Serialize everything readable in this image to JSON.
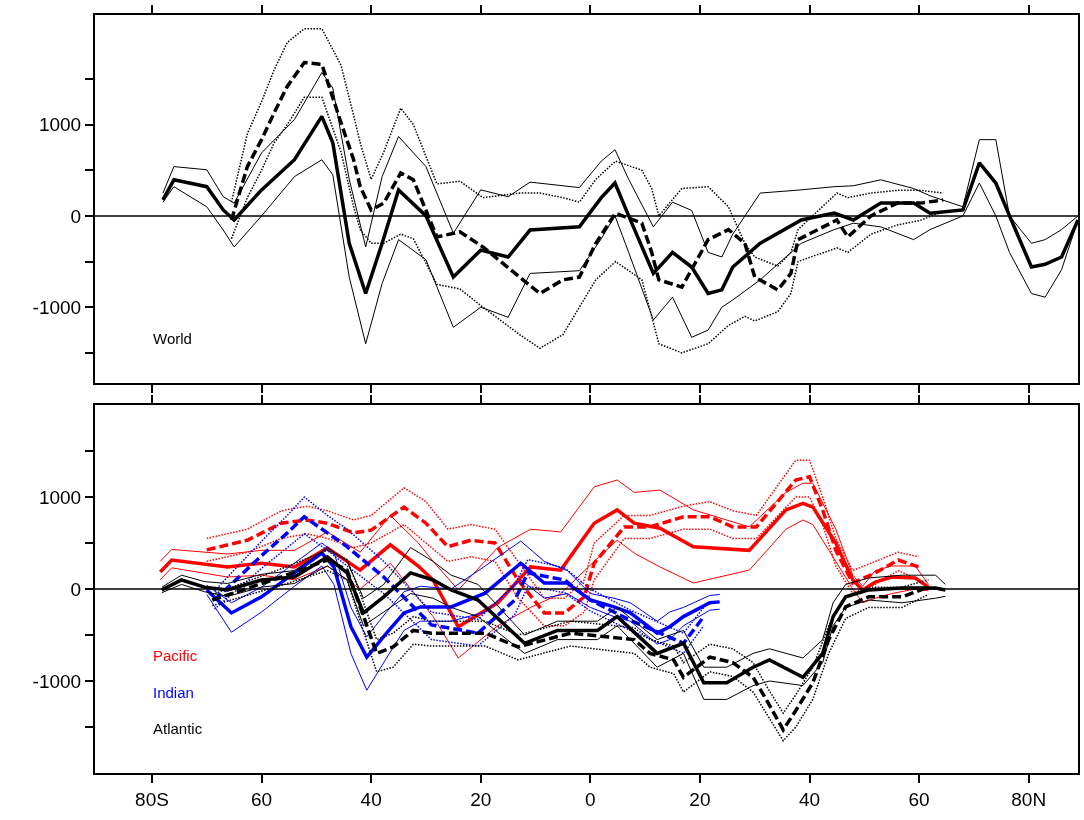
{
  "chart_data": [
    {
      "type": "line",
      "xlim": [
        -90.4,
        89
      ],
      "ylim": [
        -1830,
        2200
      ],
      "tick_labels": "y",
      "xticks": [
        {
          "value": -80,
          "label": null
        },
        {
          "value": -60,
          "label": null
        },
        {
          "value": -40,
          "label": null
        },
        {
          "value": -20,
          "label": null
        },
        {
          "value": 0,
          "label": null
        },
        {
          "value": 20,
          "label": null
        },
        {
          "value": 40,
          "label": null
        },
        {
          "value": 60,
          "label": null
        },
        {
          "value": 80,
          "label": null
        }
      ],
      "yticks": [
        {
          "value": 1500,
          "label": null
        },
        1000,
        {
          "value": 500,
          "label": null
        },
        0,
        {
          "value": -500,
          "label": null
        },
        -1000,
        {
          "value": -1500,
          "label": null
        }
      ],
      "ref_lines": [
        {
          "axis": "y",
          "value": 0,
          "color": "#000000"
        }
      ],
      "series": [
        {
          "name": "World",
          "color": "#000000",
          "line_style": "solid",
          "x": [
            -78,
            -76,
            -70,
            -67,
            -65,
            -60,
            -54,
            -49,
            -47,
            -44,
            -41,
            -38,
            -35,
            -30,
            -25,
            -20,
            -15,
            -11,
            -2,
            2,
            4.5,
            7,
            11.5,
            15,
            18.5,
            21.5,
            24,
            26,
            31,
            38.5,
            44.5,
            48,
            53,
            59,
            62,
            68,
            71,
            74,
            76.5,
            80.5,
            83,
            86,
            89
          ],
          "values": [
            175,
            395,
            320,
            65,
            -45,
            285,
            615,
            1090,
            800,
            -300,
            -850,
            -300,
            285,
            0,
            -670,
            -375,
            -450,
            -155,
            -120,
            200,
            360,
            0,
            -630,
            -400,
            -560,
            -850,
            -810,
            -560,
            -300,
            -45,
            30,
            -45,
            140,
            140,
            30,
            65,
            580,
            360,
            0,
            -560,
            -530,
            -450,
            -45
          ]
        },
        {
          "color": "#000000",
          "line_style": "solid",
          "x": [
            -78,
            -76,
            -70,
            -67,
            -65,
            -60,
            -54,
            -49,
            -47,
            -44,
            -41,
            -38,
            -35,
            -30,
            -25,
            -20,
            -15,
            -11,
            -2,
            2,
            4.5,
            7,
            11.5,
            15,
            18.5,
            21.5,
            24,
            26,
            31,
            38.5,
            44.5,
            48,
            53,
            59,
            62,
            68,
            71,
            74,
            76.5,
            80.5,
            83,
            86,
            89
          ],
          "values": [
            250,
            540,
            505,
            210,
            140,
            690,
            1055,
            1570,
            1400,
            400,
            -340,
            430,
            870,
            540,
            -190,
            285,
            210,
            370,
            310,
            600,
            725,
            400,
            -120,
            150,
            60,
            -400,
            -450,
            -200,
            250,
            285,
            320,
            330,
            395,
            300,
            220,
            100,
            835,
            835,
            0,
            -300,
            -260,
            -150,
            0
          ]
        },
        {
          "color": "#000000",
          "line_style": "solid",
          "x": [
            -78,
            -76,
            -70,
            -67,
            -65,
            -60,
            -54,
            -49,
            -47,
            -44,
            -41,
            -38,
            -35,
            -30,
            -25,
            -20,
            -15,
            -11,
            -2,
            2,
            4.5,
            7,
            11.5,
            15,
            18.5,
            21.5,
            24,
            26,
            31,
            38.5,
            44.5,
            48,
            53,
            59,
            62,
            68,
            71,
            74,
            76.5,
            80.5,
            83,
            86,
            89
          ],
          "values": [
            150,
            320,
            100,
            -155,
            -340,
            0,
            430,
            615,
            450,
            -670,
            -1400,
            -740,
            -260,
            -480,
            -1220,
            -1000,
            -1110,
            -630,
            -600,
            -250,
            0,
            -400,
            -1140,
            -890,
            -1330,
            -1250,
            -1000,
            -920,
            -700,
            -300,
            -150,
            -80,
            -120,
            -260,
            -150,
            0,
            360,
            0,
            -400,
            -850,
            -890,
            -590,
            -45
          ]
        },
        {
          "color": "#000000",
          "line_style": "dashed",
          "x": [
            -65.5,
            -62.6,
            -60,
            -57.7,
            -55.3,
            -52.2,
            -49,
            -45.5,
            -43.2,
            -42,
            -40,
            -37.7,
            -34.6,
            -32.3,
            -28,
            -23.8,
            -19.6,
            -12.9,
            -9.2,
            -5,
            -2,
            1,
            4.6,
            9.4,
            11.2,
            12.5,
            16.7,
            21.5,
            25.2,
            28.2,
            30,
            34.2,
            36.6,
            37.9,
            45,
            47,
            51.2,
            56,
            60.2,
            64.4
          ],
          "values": [
            -45,
            540,
            835,
            1130,
            1420,
            1680,
            1660,
            1020,
            615,
            320,
            65,
            140,
            470,
            395,
            -230,
            -175,
            -340,
            -670,
            -850,
            -700,
            -670,
            -300,
            30,
            -80,
            -400,
            -700,
            -780,
            -260,
            -150,
            -300,
            -670,
            -810,
            -630,
            -260,
            -45,
            -230,
            0,
            140,
            140,
            175
          ]
        },
        {
          "color": "#000000",
          "line_style": "dotted",
          "x": [
            -65.5,
            -62.6,
            -60,
            -57.7,
            -55.3,
            -52.2,
            -49,
            -45.5,
            -43.2,
            -42,
            -40,
            -37.7,
            -34.6,
            -32.3,
            -28,
            -23.8,
            -19.6,
            -12.9,
            -9.2,
            -5,
            -2,
            1,
            4.6,
            9.4,
            11.2,
            12.5,
            16.7,
            21.5,
            25.2,
            28.2,
            30,
            34.2,
            36.6,
            37.9,
            45,
            47,
            51.2,
            56,
            60.2,
            64.4
          ],
          "values": [
            150,
            900,
            1250,
            1600,
            1900,
            2050,
            2050,
            1650,
            1100,
            800,
            400,
            700,
            1180,
            1000,
            350,
            380,
            200,
            250,
            250,
            200,
            150,
            400,
            600,
            500,
            300,
            0,
            300,
            320,
            100,
            -300,
            -450,
            -550,
            -400,
            -150,
            250,
            200,
            250,
            280,
            280,
            250
          ]
        },
        {
          "color": "#000000",
          "line_style": "dotted",
          "x": [
            -65.5,
            -62.6,
            -60,
            -57.7,
            -55.3,
            -52.2,
            -49,
            -45.5,
            -43.2,
            -42,
            -40,
            -37.7,
            -34.6,
            -32.3,
            -28,
            -23.8,
            -19.6,
            -12.9,
            -9.2,
            -5,
            -2,
            1,
            4.6,
            9.4,
            11.2,
            12.5,
            16.7,
            21.5,
            25.2,
            28.2,
            30,
            34.2,
            36.6,
            37.9,
            45,
            47,
            51.2,
            56,
            60.2,
            64.4
          ],
          "values": [
            -250,
            200,
            500,
            800,
            1000,
            1300,
            1300,
            700,
            100,
            -150,
            -300,
            -300,
            -200,
            -250,
            -750,
            -800,
            -1000,
            -1300,
            -1450,
            -1300,
            -1000,
            -700,
            -500,
            -700,
            -1100,
            -1400,
            -1500,
            -1400,
            -1200,
            -1100,
            -1150,
            -1050,
            -850,
            -500,
            -350,
            -400,
            -200,
            -100,
            -50,
            50
          ]
        }
      ]
    },
    {
      "type": "line",
      "xlim": [
        -90.4,
        89
      ],
      "ylim": [
        -2000,
        2000
      ],
      "xticks": [
        {
          "value": -80,
          "label": "80S"
        },
        {
          "value": -60,
          "label": "60"
        },
        {
          "value": -40,
          "label": "40"
        },
        {
          "value": -20,
          "label": "20"
        },
        0,
        {
          "value": 20,
          "label": "20"
        },
        {
          "value": 40,
          "label": "40"
        },
        {
          "value": 60,
          "label": "60"
        },
        {
          "value": 80,
          "label": "80N"
        }
      ],
      "yticks": [
        {
          "value": 1500,
          "label": null
        },
        1000,
        {
          "value": 500,
          "label": null
        },
        0,
        {
          "value": -500,
          "label": null
        },
        -1000,
        {
          "value": -1500,
          "label": null
        }
      ],
      "ref_lines": [
        {
          "axis": "y",
          "value": 0,
          "color": "#000000"
        }
      ],
      "series": [
        {
          "name": "Pacific",
          "color": "#ff0000",
          "line_style": "solid",
          "x": [
            -78.5,
            -76.4,
            -66.2,
            -60,
            -54,
            -48,
            -42,
            -36.5,
            -31.4,
            -28.7,
            -24.1,
            -16.9,
            -10.9,
            -5.4,
            0.7,
            4.9,
            8,
            12.7,
            18.8,
            29,
            35.7,
            38.8,
            40.6,
            44.8,
            47.9,
            49.7,
            52,
            55,
            59.3,
            61.7
          ],
          "values": [
            185,
            315,
            240,
            280,
            240,
            445,
            205,
            480,
            250,
            98,
            -410,
            -150,
            240,
            205,
            715,
            860,
            715,
            660,
            460,
            420,
            860,
            930,
            890,
            500,
            98,
            -10,
            75,
            130,
            120,
            20
          ]
        },
        {
          "color": "#ff0000",
          "line_style": "solid",
          "x": [
            -78.5,
            -76.4,
            -66.2,
            -60,
            -54,
            -48,
            -42,
            -36.5,
            -31.4,
            -28.7,
            -24.1,
            -16.9,
            -10.9,
            -5.4,
            0.7,
            4.9,
            8,
            12.7,
            18.8,
            29,
            35.7,
            38.8,
            40.6,
            44.8,
            47.9,
            49.7,
            52,
            55,
            59.3,
            61.7
          ],
          "values": [
            300,
            430,
            380,
            420,
            420,
            620,
            400,
            800,
            500,
            300,
            -10,
            450,
            650,
            620,
            1110,
            1185,
            1050,
            1075,
            860,
            675,
            1050,
            1150,
            1150,
            650,
            150,
            30,
            200,
            250,
            250,
            50
          ]
        },
        {
          "color": "#ff0000",
          "line_style": "solid",
          "x": [
            -78.5,
            -76.4,
            -66.2,
            -60,
            -54,
            -48,
            -42,
            -36.5,
            -31.4,
            -28.7,
            -24.1,
            -16.9,
            -10.9,
            -5.4,
            0.7,
            4.9,
            8,
            12.7,
            18.8,
            29,
            35.7,
            38.8,
            40.6,
            44.8,
            47.9,
            49.7,
            52,
            55,
            59.3,
            61.7
          ],
          "values": [
            100,
            230,
            130,
            150,
            100,
            250,
            0,
            280,
            -100,
            -300,
            -750,
            -400,
            -200,
            -50,
            300,
            530,
            390,
            240,
            65,
            205,
            650,
            750,
            700,
            300,
            0,
            -150,
            -100,
            -50,
            0,
            -20
          ]
        },
        {
          "color": "#ff0000",
          "line_style": "dashed",
          "x": [
            -70,
            -62.6,
            -56.4,
            -51.7,
            -48,
            -43.2,
            -40,
            -34,
            -30,
            -26,
            -21.8,
            -17.4,
            -13.2,
            -8.4,
            -4.7,
            -1.1,
            0.7,
            6.2,
            10.9,
            17,
            21.8,
            26,
            30.3,
            37.5,
            40,
            42.4,
            44.8,
            47.9,
            52,
            56.2,
            59.9
          ],
          "values": [
            425,
            530,
            715,
            750,
            715,
            610,
            640,
            890,
            715,
            460,
            530,
            500,
            98,
            -260,
            -260,
            -85,
            280,
            675,
            675,
            785,
            785,
            675,
            675,
            1185,
            1220,
            860,
            420,
            65,
            175,
            315,
            240
          ]
        },
        {
          "color": "#ff0000",
          "line_style": "dotted",
          "x": [
            -70,
            -62.6,
            -56.4,
            -51.7,
            -48,
            -43.2,
            -40,
            -34,
            -30,
            -26,
            -21.8,
            -17.4,
            -13.2,
            -8.4,
            -4.7,
            -1.1,
            0.7,
            6.2,
            10.9,
            17,
            21.8,
            26,
            30.3,
            37.5,
            40,
            42.4,
            44.8,
            47.9,
            52,
            56.2,
            59.9
          ],
          "values": [
            550,
            650,
            850,
            900,
            850,
            750,
            800,
            1100,
            950,
            650,
            700,
            650,
            300,
            -100,
            -100,
            100,
            500,
            800,
            800,
            900,
            950,
            850,
            800,
            1400,
            1400,
            1000,
            550,
            200,
            300,
            400,
            350
          ]
        },
        {
          "color": "#ff0000",
          "line_style": "dotted",
          "x": [
            -70,
            -62.6,
            -56.4,
            -51.7,
            -48,
            -43.2,
            -40,
            -34,
            -30,
            -26,
            -21.8,
            -17.4,
            -13.2,
            -8.4,
            -4.7,
            -1.1,
            0.7,
            6.2,
            10.9,
            17,
            21.8,
            26,
            30.3,
            37.5,
            40,
            42.4,
            44.8,
            47.9,
            52,
            56.2,
            59.9
          ],
          "values": [
            300,
            400,
            550,
            600,
            550,
            450,
            500,
            700,
            500,
            300,
            350,
            300,
            -100,
            -400,
            -400,
            -250,
            100,
            550,
            550,
            650,
            650,
            550,
            550,
            1000,
            1000,
            700,
            250,
            -50,
            50,
            200,
            100
          ]
        },
        {
          "name": "Indian",
          "color": "#0000ff",
          "line_style": "solid",
          "x": [
            -70,
            -65.5,
            -60,
            -54,
            -49,
            -46.8,
            -43.7,
            -40.8,
            -37.2,
            -34,
            -31,
            -25.4,
            -19.2,
            -12.7,
            -8.4,
            -4.2,
            0,
            4.3,
            7.3,
            12.2,
            14.5,
            17,
            21.8,
            23.6
          ],
          "values": [
            -10,
            -260,
            -85,
            175,
            390,
            240,
            -410,
            -740,
            -480,
            -260,
            -195,
            -195,
            -45,
            280,
            65,
            65,
            -120,
            -195,
            -260,
            -480,
            -410,
            -300,
            -150,
            -140
          ]
        },
        {
          "color": "#0000ff",
          "line_style": "solid",
          "x": [
            -70,
            -65.5,
            -60,
            -54,
            -49,
            -46.8,
            -43.7,
            -40.8,
            -37.2,
            -34,
            -31,
            -25.4,
            -19.2,
            -12.7,
            -8.4,
            -4.2,
            0,
            4.3,
            7.3,
            12.2,
            14.5,
            17,
            21.8,
            23.6
          ],
          "values": [
            40,
            -150,
            20,
            280,
            500,
            400,
            -200,
            -520,
            -250,
            -30,
            30,
            0,
            250,
            520,
            300,
            200,
            -50,
            -100,
            -150,
            -350,
            -250,
            -200,
            -70,
            -60
          ]
        },
        {
          "color": "#0000ff",
          "line_style": "solid",
          "x": [
            -70,
            -65.5,
            -60,
            -54,
            -49,
            -46.8,
            -43.7,
            -40.8,
            -37.2,
            -34,
            -31,
            -25.4,
            -19.2,
            -12.7,
            -8.4,
            -4.2,
            0,
            4.3,
            7.3,
            12.2,
            14.5,
            17,
            21.8,
            23.6
          ],
          "values": [
            -60,
            -470,
            -250,
            30,
            250,
            50,
            -700,
            -1100,
            -750,
            -450,
            -350,
            -350,
            -250,
            100,
            -100,
            -50,
            -200,
            -300,
            -350,
            -600,
            -550,
            -400,
            -230,
            -220
          ]
        },
        {
          "color": "#0000ff",
          "line_style": "dashed",
          "x": [
            -68.6,
            -59.5,
            -55.3,
            -52.2,
            -48,
            -44.4,
            -37.7,
            -29,
            -20.5,
            -13.8,
            -11.4,
            -4.7,
            0,
            7.3,
            17,
            20.7
          ],
          "values": [
            -120,
            390,
            610,
            785,
            610,
            460,
            130,
            -390,
            -480,
            -120,
            175,
            98,
            -120,
            -340,
            -590,
            -300
          ]
        },
        {
          "color": "#0000ff",
          "line_style": "dotted",
          "x": [
            -68.6,
            -59.5,
            -55.3,
            -52.2,
            -48,
            -44.4,
            -37.7,
            -29,
            -20.5,
            -13.8,
            -11.4,
            -4.7,
            0,
            7.3,
            17,
            20.7
          ],
          "values": [
            -20,
            550,
            800,
            1000,
            800,
            650,
            300,
            -250,
            -330,
            50,
            320,
            230,
            0,
            -230,
            -480,
            -200
          ]
        },
        {
          "color": "#0000ff",
          "line_style": "dotted",
          "x": [
            -68.6,
            -59.5,
            -55.3,
            -52.2,
            -48,
            -44.4,
            -37.7,
            -29,
            -20.5,
            -13.8,
            -11.4,
            -4.7,
            0,
            7.3,
            17,
            20.7
          ],
          "values": [
            -220,
            250,
            450,
            600,
            420,
            250,
            -50,
            -550,
            -620,
            -280,
            30,
            -40,
            -240,
            -450,
            -700,
            -400
          ]
        },
        {
          "name": "Atlantic",
          "color": "#000000",
          "line_style": "solid",
          "x": [
            -78.2,
            -74.6,
            -70.4,
            -66.2,
            -60,
            -54,
            -48,
            -44.4,
            -41.4,
            -37.7,
            -32.8,
            -28.7,
            -25.4,
            -20.5,
            -12,
            -6,
            1.3,
            4.9,
            12.2,
            17,
            20.7,
            24.9,
            29.7,
            32.7,
            38.8,
            42.4,
            44.3,
            46.6,
            50.8,
            56.9,
            63,
            64.8
          ],
          "values": [
            -10,
            98,
            20,
            -10,
            98,
            130,
            350,
            175,
            -260,
            -85,
            175,
            98,
            -10,
            -120,
            -590,
            -450,
            -450,
            -300,
            -700,
            -590,
            -1020,
            -1020,
            -850,
            -770,
            -960,
            -700,
            -300,
            -85,
            -10,
            10,
            10,
            -10
          ]
        },
        {
          "color": "#000000",
          "line_style": "solid",
          "x": [
            -78.2,
            -74.6,
            -70.4,
            -66.2,
            -60,
            -54,
            -48,
            -44.4,
            -41.4,
            -37.7,
            -32.8,
            -28.7,
            -25.4,
            -20.5,
            -12,
            -6,
            1.3,
            4.9,
            12.2,
            17,
            20.7,
            24.9,
            29.7,
            32.7,
            38.8,
            42.4,
            44.3,
            46.6,
            50.8,
            56.9,
            63,
            64.8
          ],
          "values": [
            20,
            150,
            80,
            60,
            160,
            200,
            450,
            300,
            -100,
            50,
            450,
            300,
            150,
            50,
            -500,
            -350,
            -350,
            -200,
            -550,
            -450,
            -850,
            -850,
            -700,
            -650,
            -750,
            -550,
            -150,
            50,
            120,
            150,
            150,
            50
          ]
        },
        {
          "color": "#000000",
          "line_style": "solid",
          "x": [
            -78.2,
            -74.6,
            -70.4,
            -66.2,
            -60,
            -54,
            -48,
            -44.4,
            -41.4,
            -37.7,
            -32.8,
            -28.7,
            -25.4,
            -20.5,
            -12,
            -6,
            1.3,
            4.9,
            12.2,
            17,
            20.7,
            24.9,
            29.7,
            32.7,
            38.8,
            42.4,
            44.3,
            46.6,
            50.8,
            56.9,
            63,
            64.8
          ],
          "values": [
            -40,
            50,
            -30,
            -80,
            20,
            60,
            250,
            100,
            -400,
            -250,
            -50,
            -100,
            -200,
            -300,
            -700,
            -550,
            -550,
            -400,
            -850,
            -700,
            -1200,
            -1200,
            -1050,
            -1000,
            -1050,
            -800,
            -400,
            -200,
            -120,
            -150,
            -100,
            -80
          ]
        },
        {
          "color": "#000000",
          "line_style": "dashed",
          "x": [
            -69,
            -56.4,
            -48,
            -44.4,
            -42,
            -39,
            -36,
            -32.3,
            -29,
            -19.2,
            -13.2,
            -3.6,
            8,
            10.9,
            15.2,
            17,
            21.8,
            26,
            29.7,
            32.1,
            35.2,
            37.5,
            40.6,
            43.5,
            46.6,
            50.8,
            56.9,
            61.7
          ],
          "values": [
            -120,
            130,
            315,
            205,
            -195,
            -700,
            -630,
            -450,
            -480,
            -480,
            -630,
            -480,
            -550,
            -700,
            -770,
            -960,
            -740,
            -800,
            -960,
            -1200,
            -1530,
            -1320,
            -1020,
            -550,
            -195,
            -85,
            -85,
            20
          ]
        },
        {
          "color": "#000000",
          "line_style": "dotted",
          "x": [
            -69,
            -56.4,
            -48,
            -44.4,
            -42,
            -39,
            -36,
            -32.3,
            -29,
            -19.2,
            -13.2,
            -3.6,
            8,
            10.9,
            15.2,
            17,
            21.8,
            26,
            29.7,
            32.1,
            35.2,
            37.5,
            40.6,
            43.5,
            46.6,
            50.8,
            56.9,
            61.7
          ],
          "values": [
            -60,
            220,
            420,
            320,
            -50,
            -550,
            -480,
            -300,
            -350,
            -350,
            -500,
            -350,
            -420,
            -550,
            -620,
            -800,
            -600,
            -650,
            -800,
            -1050,
            -1350,
            -1150,
            -850,
            -400,
            -80,
            20,
            20,
            100
          ]
        },
        {
          "color": "#000000",
          "line_style": "dotted",
          "x": [
            -69,
            -56.4,
            -48,
            -44.4,
            -42,
            -39,
            -36,
            -32.3,
            -29,
            -19.2,
            -13.2,
            -3.6,
            8,
            10.9,
            15.2,
            17,
            21.8,
            26,
            29.7,
            32.1,
            35.2,
            37.5,
            40.6,
            43.5,
            46.6,
            50.8,
            56.9,
            61.7
          ],
          "values": [
            -180,
            40,
            200,
            100,
            -350,
            -900,
            -850,
            -600,
            -620,
            -620,
            -770,
            -620,
            -700,
            -850,
            -920,
            -1120,
            -900,
            -950,
            -1120,
            -1350,
            -1650,
            -1500,
            -1200,
            -700,
            -320,
            -200,
            -200,
            -60
          ]
        }
      ]
    }
  ]
}
